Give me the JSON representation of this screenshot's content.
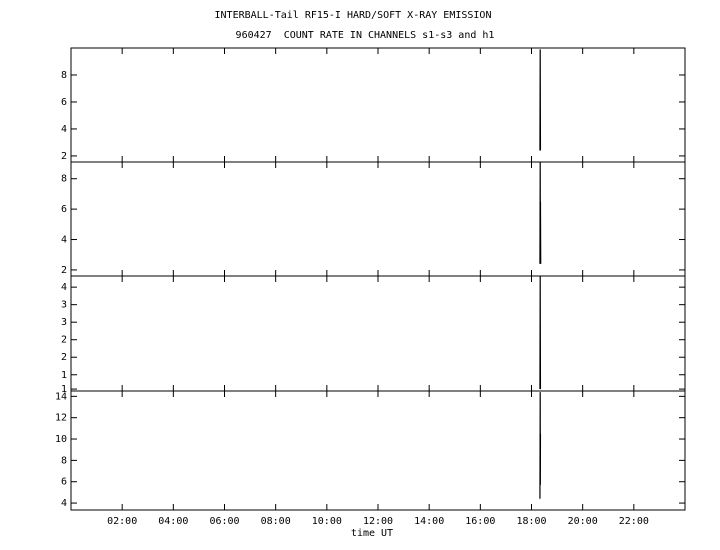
{
  "chart_data": [
    {
      "type": "line",
      "title": "INTERBALL-Tail RF15-I HARD/SOFT X-RAY EMISSION",
      "subtitle": "960427  COUNT RATE IN CHANNELS s1-s3 and h1",
      "x": [
        18.33,
        18.34,
        18.35
      ],
      "series": [
        {
          "color": "#000000",
          "values": [
            2.4,
            9.9,
            2.4
          ]
        }
      ],
      "xlim": [
        0,
        24
      ],
      "xticks": [
        {
          "value": 2,
          "label": "02:00"
        },
        {
          "value": 4,
          "label": "04:00"
        },
        {
          "value": 6,
          "label": "06:00"
        },
        {
          "value": 8,
          "label": "08:00"
        },
        {
          "value": 10,
          "label": "10:00"
        },
        {
          "value": 12,
          "label": "12:00"
        },
        {
          "value": 14,
          "label": "14:00"
        },
        {
          "value": 16,
          "label": "16:00"
        },
        {
          "value": 18,
          "label": "18:00"
        },
        {
          "value": 20,
          "label": "20:00"
        },
        {
          "value": 22,
          "label": "22:00"
        }
      ],
      "ylim": [
        1.55,
        10
      ],
      "yticks": [
        2,
        4,
        6,
        8
      ]
    },
    {
      "type": "line",
      "x": [
        18.33,
        18.34,
        18.345,
        18.35,
        18.36
      ],
      "series": [
        {
          "color": "#000000",
          "values": [
            2.4,
            9.1,
            4.5,
            6.5,
            2.4
          ]
        }
      ],
      "xlim": [
        0,
        24
      ],
      "xticks": [
        {
          "value": 2,
          "label": "02:00"
        },
        {
          "value": 4,
          "label": "04:00"
        },
        {
          "value": 6,
          "label": "06:00"
        },
        {
          "value": 8,
          "label": "08:00"
        },
        {
          "value": 10,
          "label": "10:00"
        },
        {
          "value": 12,
          "label": "12:00"
        },
        {
          "value": 14,
          "label": "14:00"
        },
        {
          "value": 16,
          "label": "16:00"
        },
        {
          "value": 18,
          "label": "18:00"
        },
        {
          "value": 20,
          "label": "20:00"
        },
        {
          "value": 22,
          "label": "22:00"
        }
      ],
      "ylim": [
        1.6,
        9.1
      ],
      "yticks": [
        2,
        4,
        6,
        8
      ]
    },
    {
      "type": "line",
      "x": [
        18.33,
        18.34,
        18.35
      ],
      "series": [
        {
          "color": "#000000",
          "values": [
            0.8,
            4.35,
            0.8
          ]
        }
      ],
      "xlim": [
        0,
        24
      ],
      "xticks": [
        {
          "value": 2,
          "label": "02:00"
        },
        {
          "value": 4,
          "label": "04:00"
        },
        {
          "value": 6,
          "label": "06:00"
        },
        {
          "value": 8,
          "label": "08:00"
        },
        {
          "value": 10,
          "label": "10:00"
        },
        {
          "value": 12,
          "label": "12:00"
        },
        {
          "value": 14,
          "label": "14:00"
        },
        {
          "value": 16,
          "label": "16:00"
        },
        {
          "value": 18,
          "label": "18:00"
        },
        {
          "value": 20,
          "label": "20:00"
        },
        {
          "value": 22,
          "label": "22:00"
        }
      ],
      "ylim": [
        0.74,
        4.35
      ],
      "yticks": [
        {
          "value": 0.8,
          "label": "1"
        },
        {
          "value": 1.25,
          "label": "1"
        },
        {
          "value": 1.8,
          "label": "2"
        },
        {
          "value": 2.35,
          "label": "2"
        },
        {
          "value": 2.9,
          "label": "3"
        },
        {
          "value": 3.45,
          "label": "3"
        },
        4
      ]
    },
    {
      "type": "line",
      "x_label": "time UT",
      "x": [
        18.33,
        18.34,
        18.345,
        18.35
      ],
      "series": [
        {
          "color": "#000000",
          "values": [
            4.4,
            14.4,
            5.7,
            10.5
          ]
        }
      ],
      "xlim": [
        0,
        24
      ],
      "xticks": [
        {
          "value": 2,
          "label": "02:00"
        },
        {
          "value": 4,
          "label": "04:00"
        },
        {
          "value": 6,
          "label": "06:00"
        },
        {
          "value": 8,
          "label": "08:00"
        },
        {
          "value": 10,
          "label": "10:00"
        },
        {
          "value": 12,
          "label": "12:00"
        },
        {
          "value": 14,
          "label": "14:00"
        },
        {
          "value": 16,
          "label": "16:00"
        },
        {
          "value": 18,
          "label": "18:00"
        },
        {
          "value": 20,
          "label": "20:00"
        },
        {
          "value": 22,
          "label": "22:00"
        }
      ],
      "ylim": [
        3.35,
        14.5
      ],
      "yticks": [
        4,
        6,
        8,
        10,
        12,
        14
      ]
    }
  ]
}
